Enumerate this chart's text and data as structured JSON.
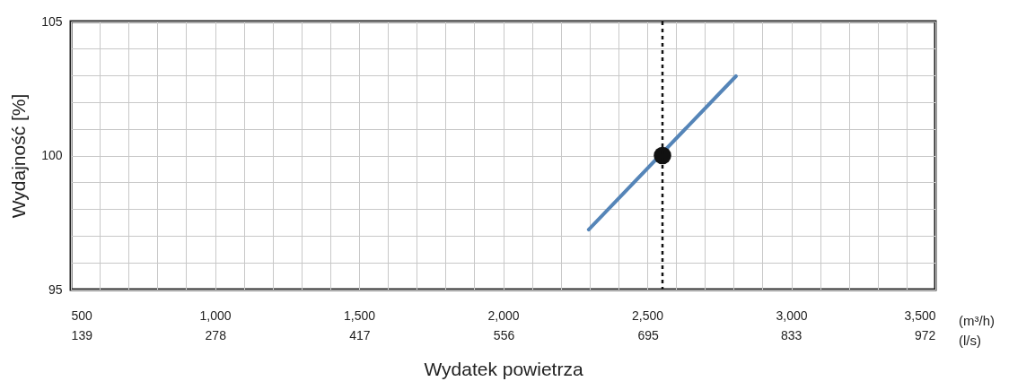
{
  "chart_data": {
    "type": "line",
    "xlabel": "Wydatek powietrza",
    "ylabel": "Wydajność [%]",
    "xlim": [
      500,
      3500
    ],
    "xticks": [
      500,
      {
        "value": 600,
        "label": null
      },
      {
        "value": 700,
        "label": null
      },
      {
        "value": 800,
        "label": null
      },
      {
        "value": 900,
        "label": null
      },
      {
        "value": 1000,
        "label": "1,000"
      },
      {
        "value": 1100,
        "label": null
      },
      {
        "value": 1200,
        "label": null
      },
      {
        "value": 1300,
        "label": null
      },
      {
        "value": 1400,
        "label": null
      },
      {
        "value": 1500,
        "label": "1,500"
      },
      {
        "value": 1600,
        "label": null
      },
      {
        "value": 1700,
        "label": null
      },
      {
        "value": 1800,
        "label": null
      },
      {
        "value": 1900,
        "label": null
      },
      {
        "value": 2000,
        "label": "2,000"
      },
      {
        "value": 2100,
        "label": null
      },
      {
        "value": 2200,
        "label": null
      },
      {
        "value": 2300,
        "label": null
      },
      {
        "value": 2400,
        "label": null
      },
      {
        "value": 2500,
        "label": "2,500"
      },
      {
        "value": 2600,
        "label": null
      },
      {
        "value": 2700,
        "label": null
      },
      {
        "value": 2800,
        "label": null
      },
      {
        "value": 2900,
        "label": null
      },
      {
        "value": 3000,
        "label": "3,000"
      },
      {
        "value": 3100,
        "label": null
      },
      {
        "value": 3200,
        "label": null
      },
      {
        "value": 3300,
        "label": null
      },
      {
        "value": 3400,
        "label": null
      },
      {
        "value": 3500,
        "label": "3,500"
      }
    ],
    "x2lim": [
      138.9,
      972.2
    ],
    "x2ticks": [
      139,
      278,
      417,
      556,
      695,
      833,
      972
    ],
    "ylim": [
      95,
      105
    ],
    "yticks": [
      95,
      {
        "value": 96,
        "label": null
      },
      {
        "value": 97,
        "label": null
      },
      {
        "value": 98,
        "label": null
      },
      {
        "value": 99,
        "label": null
      },
      100,
      {
        "value": 101,
        "label": null
      },
      {
        "value": 102,
        "label": null
      },
      {
        "value": 103,
        "label": null
      },
      {
        "value": 104,
        "label": null
      },
      105
    ],
    "series": [
      {
        "color": "#5585b8",
        "x": [
          2297,
          2808
        ],
        "values": [
          97.24,
          102.96
        ]
      },
      {
        "type": "scatter",
        "color": "#111111",
        "x": [
          2553
        ],
        "values": [
          100
        ]
      }
    ],
    "ref_lines": [
      {
        "axis": "x",
        "value": 2553,
        "color": "#111111",
        "line_style": "dashed"
      }
    ],
    "annotations": [
      "(m³/h)",
      "(l/s)"
    ],
    "grid": true
  }
}
